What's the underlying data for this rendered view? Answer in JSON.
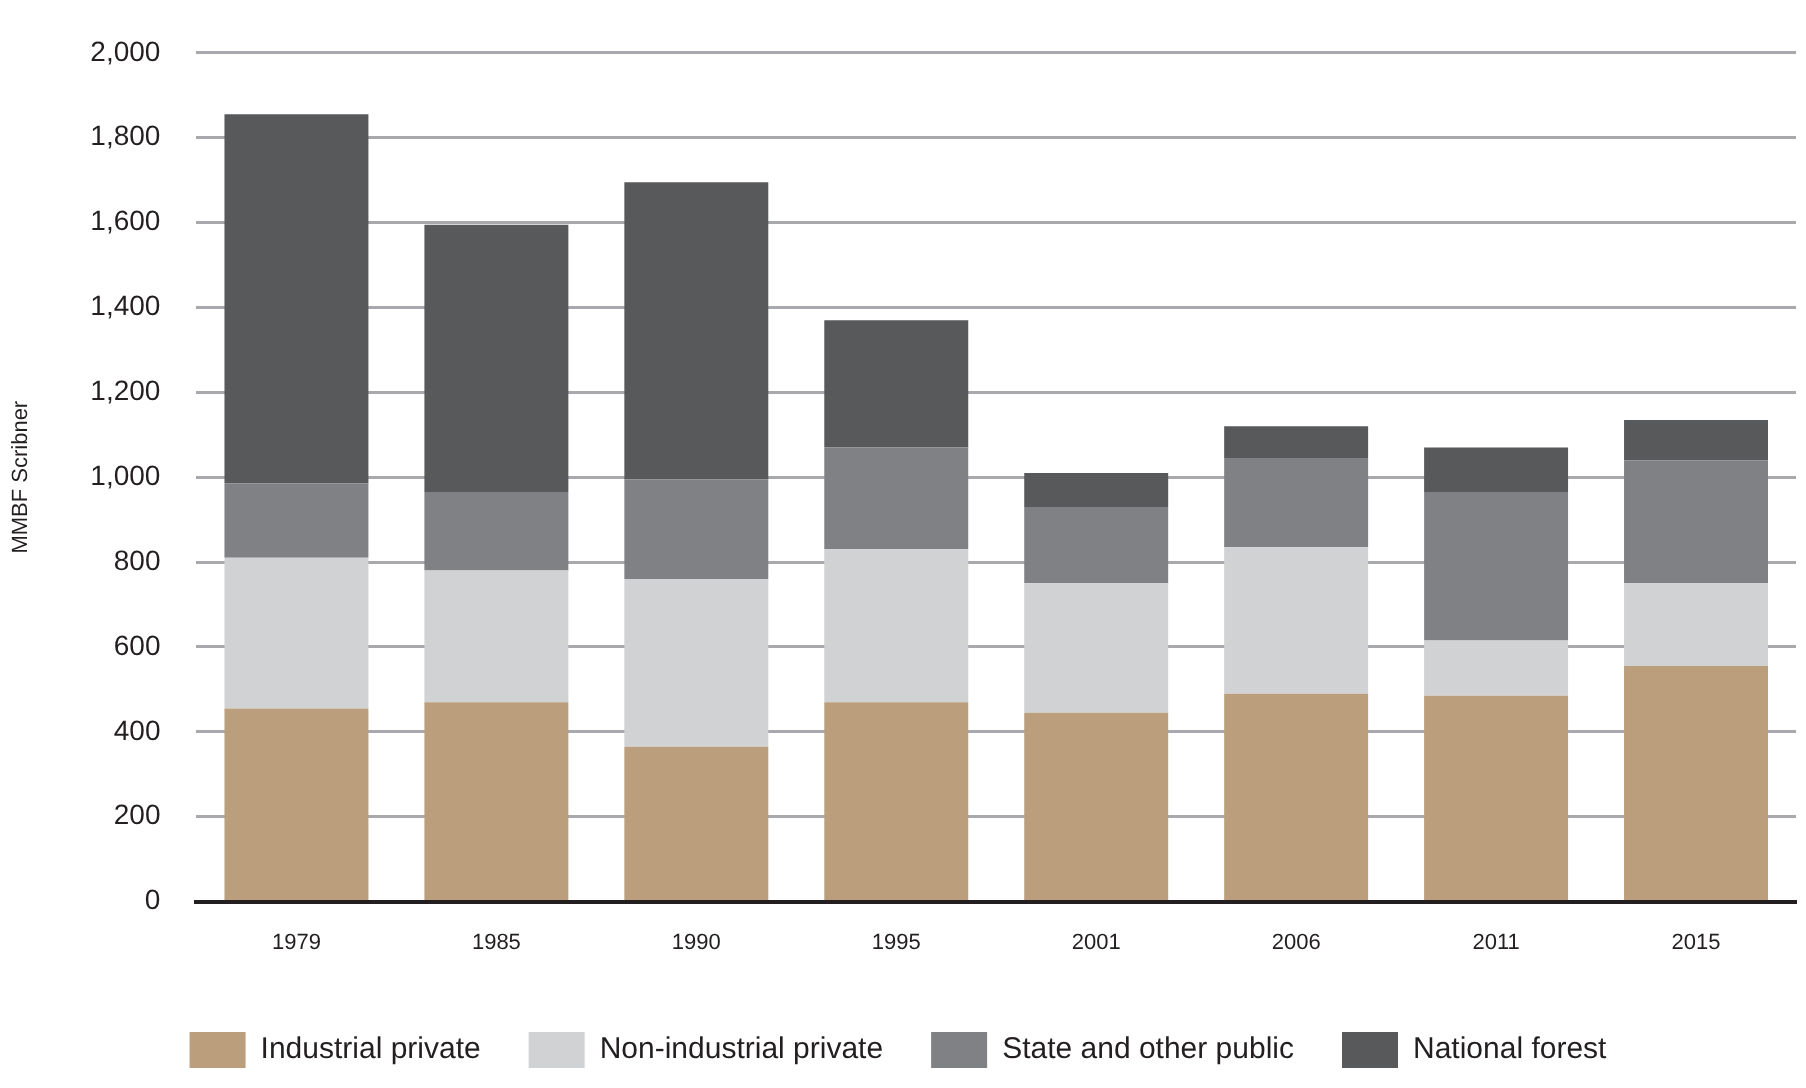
{
  "chart_data": {
    "type": "bar",
    "stacked": true,
    "ylabel": "MMBF Scribner",
    "categories": [
      "1979",
      "1985",
      "1990",
      "1995",
      "2001",
      "2006",
      "2011",
      "2015"
    ],
    "series": [
      {
        "name": "Industrial private",
        "color": "#bb9e7c",
        "values": [
          455,
          470,
          365,
          470,
          445,
          490,
          485,
          555
        ]
      },
      {
        "name": "Non-industrial private",
        "color": "#d1d2d4",
        "values": [
          355,
          310,
          395,
          360,
          305,
          345,
          130,
          195
        ]
      },
      {
        "name": "State and other public",
        "color": "#808184",
        "values": [
          175,
          185,
          235,
          240,
          180,
          210,
          350,
          290
        ]
      },
      {
        "name": "National forest",
        "color": "#58595b",
        "values": [
          870,
          630,
          700,
          300,
          80,
          75,
          105,
          95
        ]
      }
    ],
    "ylim": [
      0,
      2000
    ],
    "yticks": [
      {
        "value": 0,
        "label": "0"
      },
      {
        "value": 200,
        "label": "200"
      },
      {
        "value": 400,
        "label": "400"
      },
      {
        "value": 600,
        "label": "600"
      },
      {
        "value": 800,
        "label": "800"
      },
      {
        "value": 1000,
        "label": "1,000"
      },
      {
        "value": 1200,
        "label": "1,200"
      },
      {
        "value": 1400,
        "label": "1,400"
      },
      {
        "value": 1600,
        "label": "1,600"
      },
      {
        "value": 1800,
        "label": "1,800"
      },
      {
        "value": 2000,
        "label": "2,000"
      }
    ],
    "grid": "y",
    "legend": "bottom"
  }
}
